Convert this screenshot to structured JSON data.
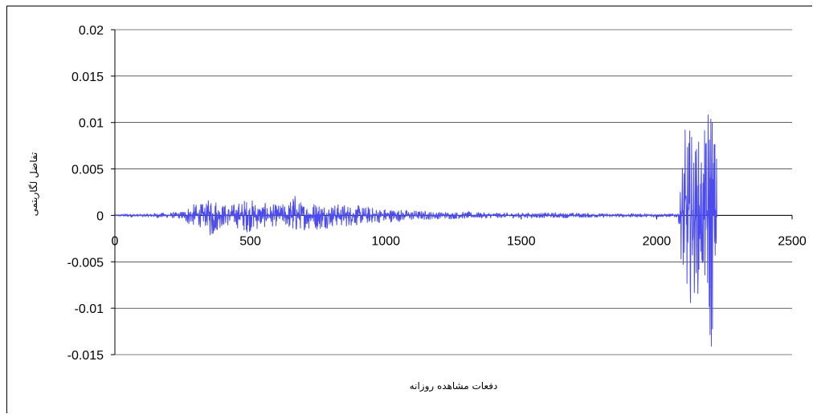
{
  "chart_data": {
    "type": "line",
    "title": "",
    "xlabel": "دفعات مشاهده روزانه",
    "ylabel": "تفاضل لگاریتمی",
    "xlim": [
      0,
      2500
    ],
    "ylim": [
      -0.015,
      0.02
    ],
    "xticks": [
      0,
      500,
      1000,
      1500,
      2000,
      2500
    ],
    "yticks": [
      0.02,
      0.015,
      0.01,
      0.005,
      0,
      -0.005,
      -0.01,
      -0.015
    ],
    "xtick_labels": [
      "0",
      "500",
      "1000",
      "1500",
      "2000",
      "2500"
    ],
    "ytick_labels": [
      "0.02",
      "0.015",
      "0.01",
      "0.005",
      "0",
      "-0.005",
      "-0.01",
      "-0.015"
    ],
    "grid": "horizontal",
    "legend": "none",
    "line_color": "#4b4bf0",
    "n_points": 2225,
    "series": [
      {
        "x": [
          0,
          40,
          60,
          100,
          150,
          200,
          240,
          270,
          300,
          340,
          360,
          380,
          420,
          450,
          480,
          520,
          560,
          600,
          640,
          660,
          680,
          720,
          760,
          800,
          850,
          900,
          950,
          1000,
          1050,
          1100,
          1200,
          1300,
          1400,
          1500,
          1600,
          1700,
          1800,
          1900,
          2000,
          2080,
          2100,
          2120,
          2140,
          2160,
          2180,
          2200,
          2210,
          2225
        ],
        "amplitude": [
          5e-05,
          0.0002,
          0.0002,
          0.0001,
          0.0003,
          0.0003,
          0.0004,
          0.0011,
          0.0013,
          0.0013,
          0.0031,
          0.0015,
          0.0012,
          0.0014,
          0.0019,
          0.0017,
          0.0013,
          0.0012,
          0.0014,
          0.0027,
          0.0016,
          0.0016,
          0.0016,
          0.0013,
          0.0013,
          0.0011,
          0.0009,
          0.0008,
          0.0007,
          0.0006,
          0.0004,
          0.0004,
          0.0003,
          0.0003,
          0.0003,
          0.0003,
          0.0002,
          0.0002,
          0.0002,
          0.0002,
          0.0093,
          0.0099,
          0.0086,
          0.0085,
          0.0093,
          0.018,
          0.0098,
          0.0079
        ]
      }
    ]
  }
}
